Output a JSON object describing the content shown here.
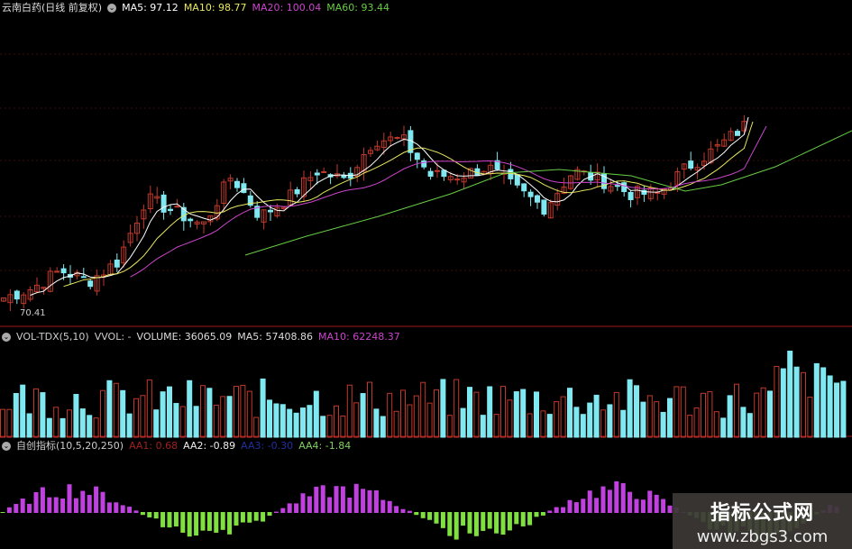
{
  "price_panel": {
    "title": "云南白药(日线 前复权)",
    "ma5": "MA5: 97.12",
    "ma10": "MA10: 98.77",
    "ma20": "MA20: 100.04",
    "ma60": "MA60: 93.44",
    "low_label": "70.41",
    "colors": {
      "ma5": "#ffffff",
      "ma10": "#e8e860",
      "ma20": "#cc44cc",
      "ma60": "#66cc44",
      "up": "#c0392b",
      "down": "#7fe8f0"
    }
  },
  "volume_panel": {
    "title": "VOL-TDX(5,10)",
    "vvol": "VVOL: -",
    "volume": "VOLUME: 36065.09",
    "ma5": "MA5: 57408.86",
    "ma10": "MA10: 62248.37"
  },
  "indicator_panel": {
    "title": "自创指标(10,5,20,250)",
    "aa1": "AA1: 0.68",
    "aa2": "AA2: -0.89",
    "aa3": "AA3: -0.30",
    "aa4": "AA4: -1.84"
  },
  "chart_data": {
    "type": "candlestick",
    "anchor_closes": [
      72.0,
      73.4,
      76.1,
      74.5,
      77.4,
      86.9,
      84.9,
      82.8,
      90.3,
      84.2,
      86.9,
      91.0,
      89.6,
      95.7,
      95.7,
      90.3,
      90.3,
      91.6,
      88.2,
      85.5,
      91.0,
      89.6,
      87.6,
      87.6,
      91.6,
      94.3,
      97.7
    ],
    "low": 70.41
  },
  "watermark": {
    "name": "指标公式网",
    "url": "www.zbgs3.com"
  }
}
